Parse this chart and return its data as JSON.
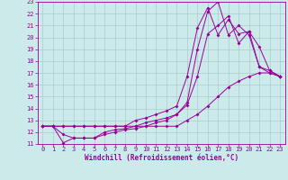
{
  "xlabel": "Windchill (Refroidissement éolien,°C)",
  "bg_color": "#cceaea",
  "line_color": "#990099",
  "grid_color": "#aacccc",
  "xlim": [
    -0.5,
    23.5
  ],
  "ylim": [
    11,
    23
  ],
  "xticks": [
    0,
    1,
    2,
    3,
    4,
    5,
    6,
    7,
    8,
    9,
    10,
    11,
    12,
    13,
    14,
    15,
    16,
    17,
    18,
    19,
    20,
    21,
    22,
    23
  ],
  "yticks": [
    11,
    12,
    13,
    14,
    15,
    16,
    17,
    18,
    19,
    20,
    21,
    22,
    23
  ],
  "series": [
    {
      "x": [
        0,
        1,
        2,
        3,
        4,
        5,
        6,
        7,
        8,
        9,
        10,
        11,
        12,
        13,
        14,
        15,
        16,
        17,
        18,
        19,
        20,
        21,
        22,
        23
      ],
      "y": [
        12.5,
        12.5,
        12.5,
        12.5,
        12.5,
        12.5,
        12.5,
        12.5,
        12.5,
        12.5,
        12.5,
        12.5,
        12.5,
        12.5,
        13.0,
        13.5,
        14.2,
        15.0,
        15.8,
        16.3,
        16.7,
        17.0,
        17.0,
        16.7
      ]
    },
    {
      "x": [
        0,
        1,
        2,
        3,
        4,
        5,
        6,
        7,
        8,
        9,
        10,
        11,
        12,
        13,
        14,
        15,
        16,
        17,
        18,
        19,
        20,
        21,
        22,
        23
      ],
      "y": [
        12.5,
        12.5,
        11.8,
        11.5,
        11.5,
        11.5,
        11.8,
        12.0,
        12.2,
        12.3,
        12.5,
        12.8,
        13.0,
        13.5,
        14.5,
        19.0,
        22.2,
        23.0,
        20.2,
        21.0,
        20.2,
        17.5,
        17.2,
        16.7
      ]
    },
    {
      "x": [
        0,
        1,
        2,
        3,
        4,
        5,
        6,
        7,
        8,
        9,
        10,
        11,
        12,
        13,
        14,
        15,
        16,
        17,
        18,
        19,
        20,
        21,
        22,
        23
      ],
      "y": [
        12.5,
        12.5,
        12.5,
        12.5,
        12.5,
        12.5,
        12.5,
        12.5,
        12.5,
        13.0,
        13.2,
        13.5,
        13.8,
        14.2,
        16.7,
        20.8,
        22.5,
        20.2,
        21.5,
        20.3,
        20.5,
        19.2,
        17.2,
        16.7
      ]
    },
    {
      "x": [
        0,
        1,
        2,
        3,
        4,
        5,
        6,
        7,
        8,
        9,
        10,
        11,
        12,
        13,
        14,
        15,
        16,
        17,
        18,
        19,
        20,
        21,
        22,
        23
      ],
      "y": [
        12.5,
        12.5,
        11.1,
        11.5,
        11.5,
        11.5,
        12.0,
        12.2,
        12.3,
        12.5,
        12.8,
        13.0,
        13.2,
        13.5,
        14.3,
        16.7,
        20.3,
        21.0,
        21.8,
        19.5,
        20.5,
        17.5,
        17.0,
        16.7
      ]
    }
  ]
}
